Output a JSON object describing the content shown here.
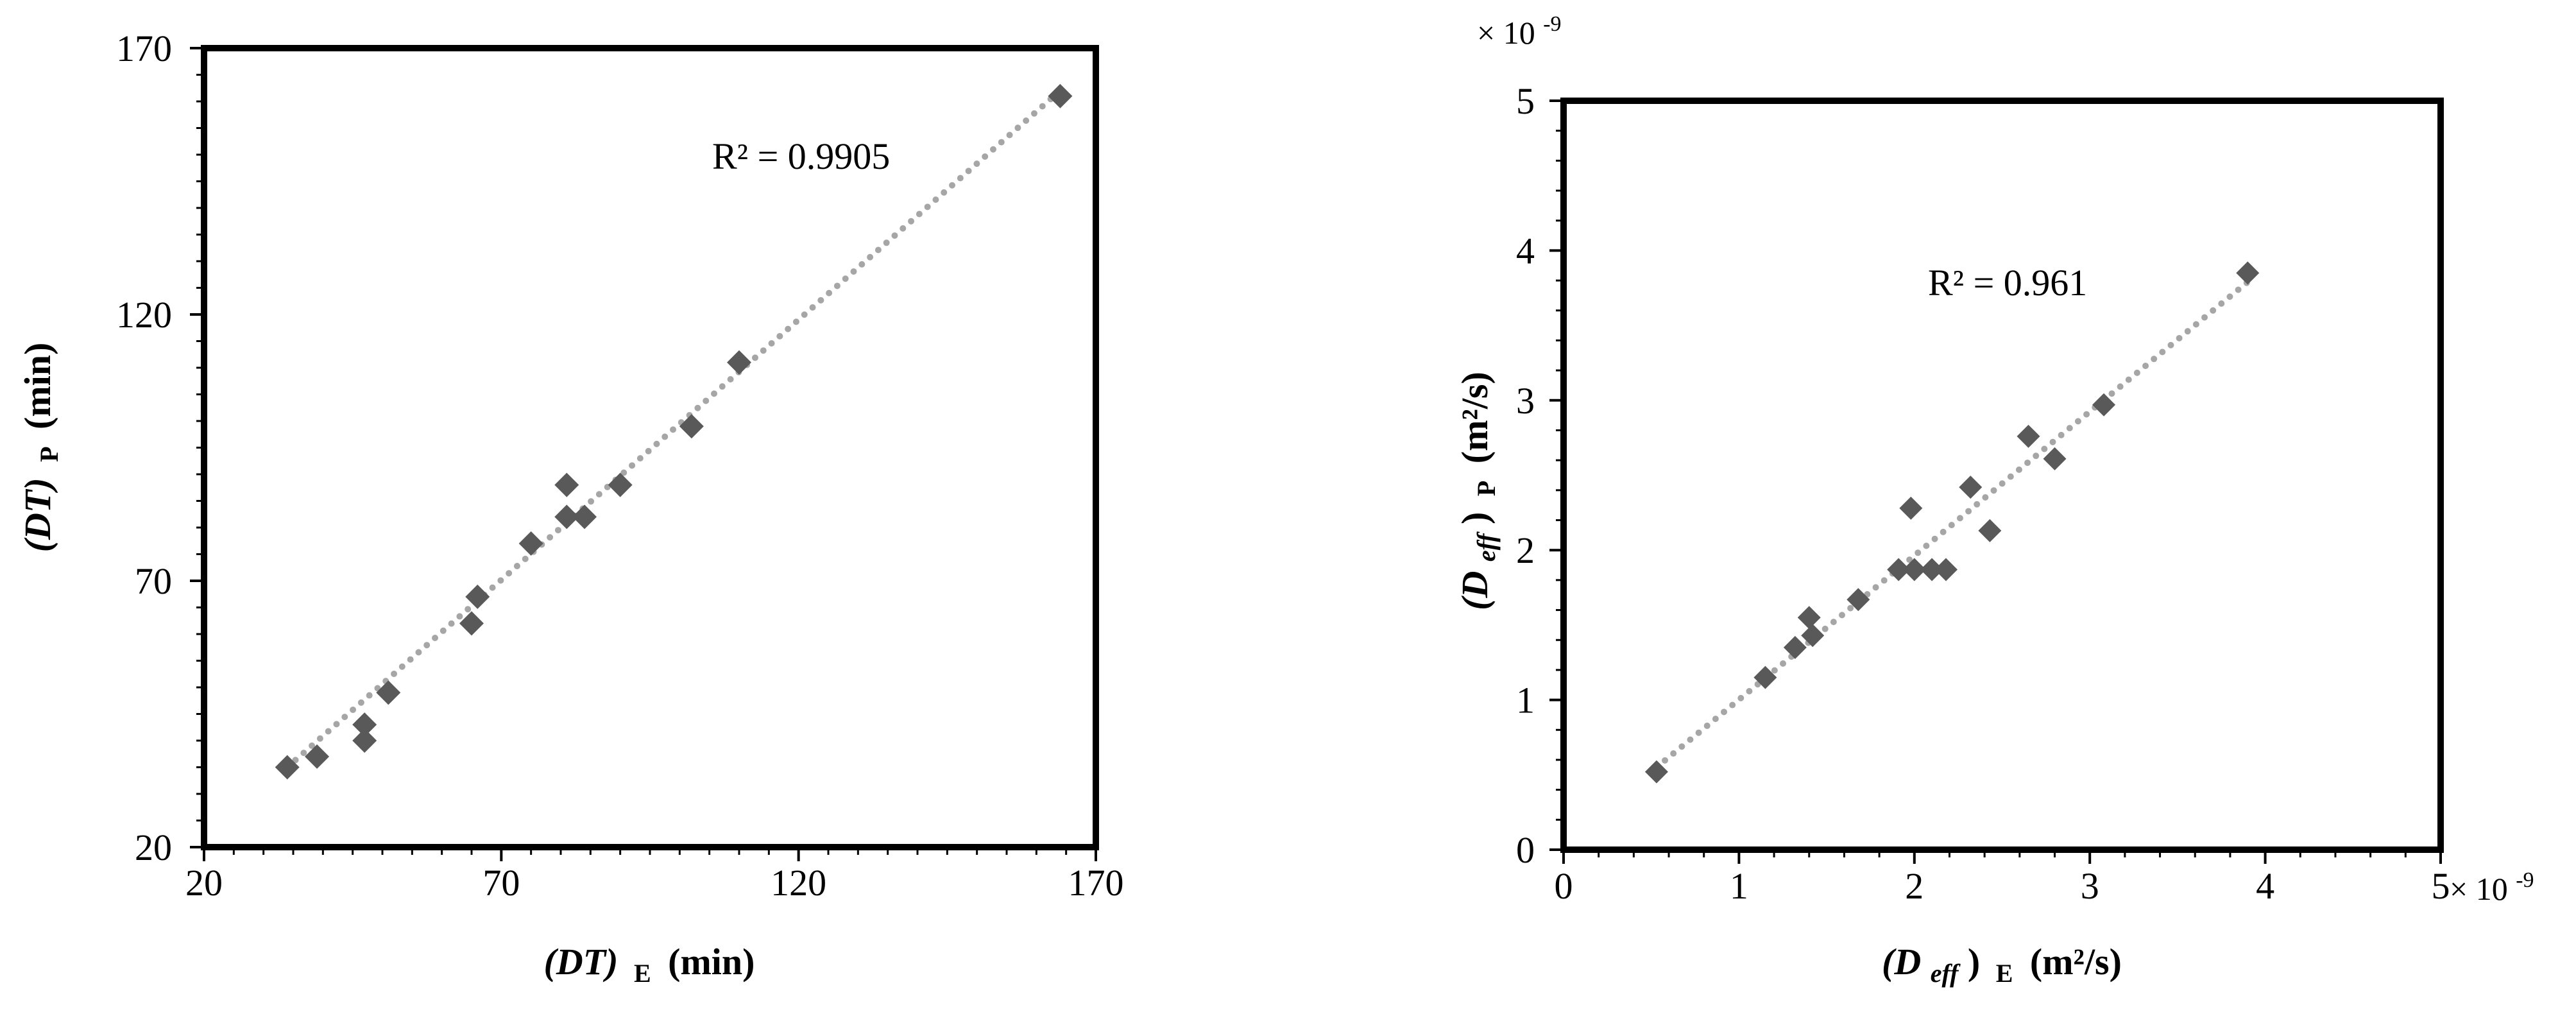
{
  "chart_data": [
    {
      "type": "scatter",
      "xlabel": {
        "main": "(DT)",
        "sub": "E",
        "unit": "(min)"
      },
      "ylabel": {
        "main": "(DT)",
        "sub": "P",
        "unit": "(min)"
      },
      "xlim": [
        20,
        170
      ],
      "ylim": [
        20,
        170
      ],
      "xticks": [
        20,
        70,
        120,
        170
      ],
      "yticks": [
        20,
        70,
        120,
        170
      ],
      "x_tick_labels": [
        "20",
        "70",
        "120",
        "170"
      ],
      "y_tick_labels": [
        "20",
        "70",
        "120",
        "170"
      ],
      "minor_ticks_per_major": 10,
      "grid": false,
      "trendline": {
        "style": "dotted",
        "color": "#a6a6a6",
        "x": [
          34,
          164
        ],
        "y": [
          35,
          162
        ]
      },
      "r2_text": "R² = 0.9905",
      "marker": {
        "shape": "diamond",
        "color": "#595959"
      },
      "points": [
        {
          "x": 34,
          "y": 35
        },
        {
          "x": 39,
          "y": 37
        },
        {
          "x": 47,
          "y": 40
        },
        {
          "x": 47,
          "y": 43
        },
        {
          "x": 51,
          "y": 49
        },
        {
          "x": 65,
          "y": 62
        },
        {
          "x": 66,
          "y": 67
        },
        {
          "x": 75,
          "y": 77
        },
        {
          "x": 81,
          "y": 82
        },
        {
          "x": 84,
          "y": 82
        },
        {
          "x": 81,
          "y": 88
        },
        {
          "x": 90,
          "y": 88
        },
        {
          "x": 102,
          "y": 99
        },
        {
          "x": 110,
          "y": 111
        },
        {
          "x": 164,
          "y": 161
        }
      ]
    },
    {
      "type": "scatter",
      "xlabel": {
        "main": "(D",
        "italic_sub": "eff",
        "close": ")",
        "sub": "E",
        "unit": "(m²/s)"
      },
      "ylabel": {
        "main": "(D",
        "italic_sub": "eff",
        "close": ")",
        "sub": "P",
        "unit": "(m²/s)"
      },
      "xlim": [
        0,
        5
      ],
      "ylim": [
        0,
        5
      ],
      "xticks": [
        0,
        1,
        2,
        3,
        4,
        5
      ],
      "yticks": [
        0,
        1,
        2,
        3,
        4,
        5
      ],
      "x_tick_labels": [
        "0",
        "1",
        "2",
        "3",
        "4",
        "5"
      ],
      "y_tick_labels": [
        "0",
        "1",
        "2",
        "3",
        "4",
        "5"
      ],
      "minor_ticks_per_major": 5,
      "x_exponent": {
        "base": "× 10",
        "power": "-9"
      },
      "y_exponent": {
        "base": "× 10",
        "power": "-9"
      },
      "grid": false,
      "trendline": {
        "style": "dotted",
        "color": "#a6a6a6",
        "x": [
          0.53,
          3.9
        ],
        "y": [
          0.55,
          3.79
        ]
      },
      "r2_text": "R² = 0.961",
      "marker": {
        "shape": "diamond",
        "color": "#595959"
      },
      "points": [
        {
          "x": 0.53,
          "y": 0.52
        },
        {
          "x": 1.15,
          "y": 1.15
        },
        {
          "x": 1.32,
          "y": 1.35
        },
        {
          "x": 1.42,
          "y": 1.43
        },
        {
          "x": 1.4,
          "y": 1.55
        },
        {
          "x": 1.68,
          "y": 1.67
        },
        {
          "x": 1.91,
          "y": 1.87
        },
        {
          "x": 2.0,
          "y": 1.87
        },
        {
          "x": 2.1,
          "y": 1.87
        },
        {
          "x": 2.18,
          "y": 1.87
        },
        {
          "x": 2.43,
          "y": 2.13
        },
        {
          "x": 1.98,
          "y": 2.28
        },
        {
          "x": 2.32,
          "y": 2.42
        },
        {
          "x": 2.65,
          "y": 2.76
        },
        {
          "x": 2.8,
          "y": 2.61
        },
        {
          "x": 3.08,
          "y": 2.97
        },
        {
          "x": 3.9,
          "y": 3.85
        }
      ]
    }
  ]
}
